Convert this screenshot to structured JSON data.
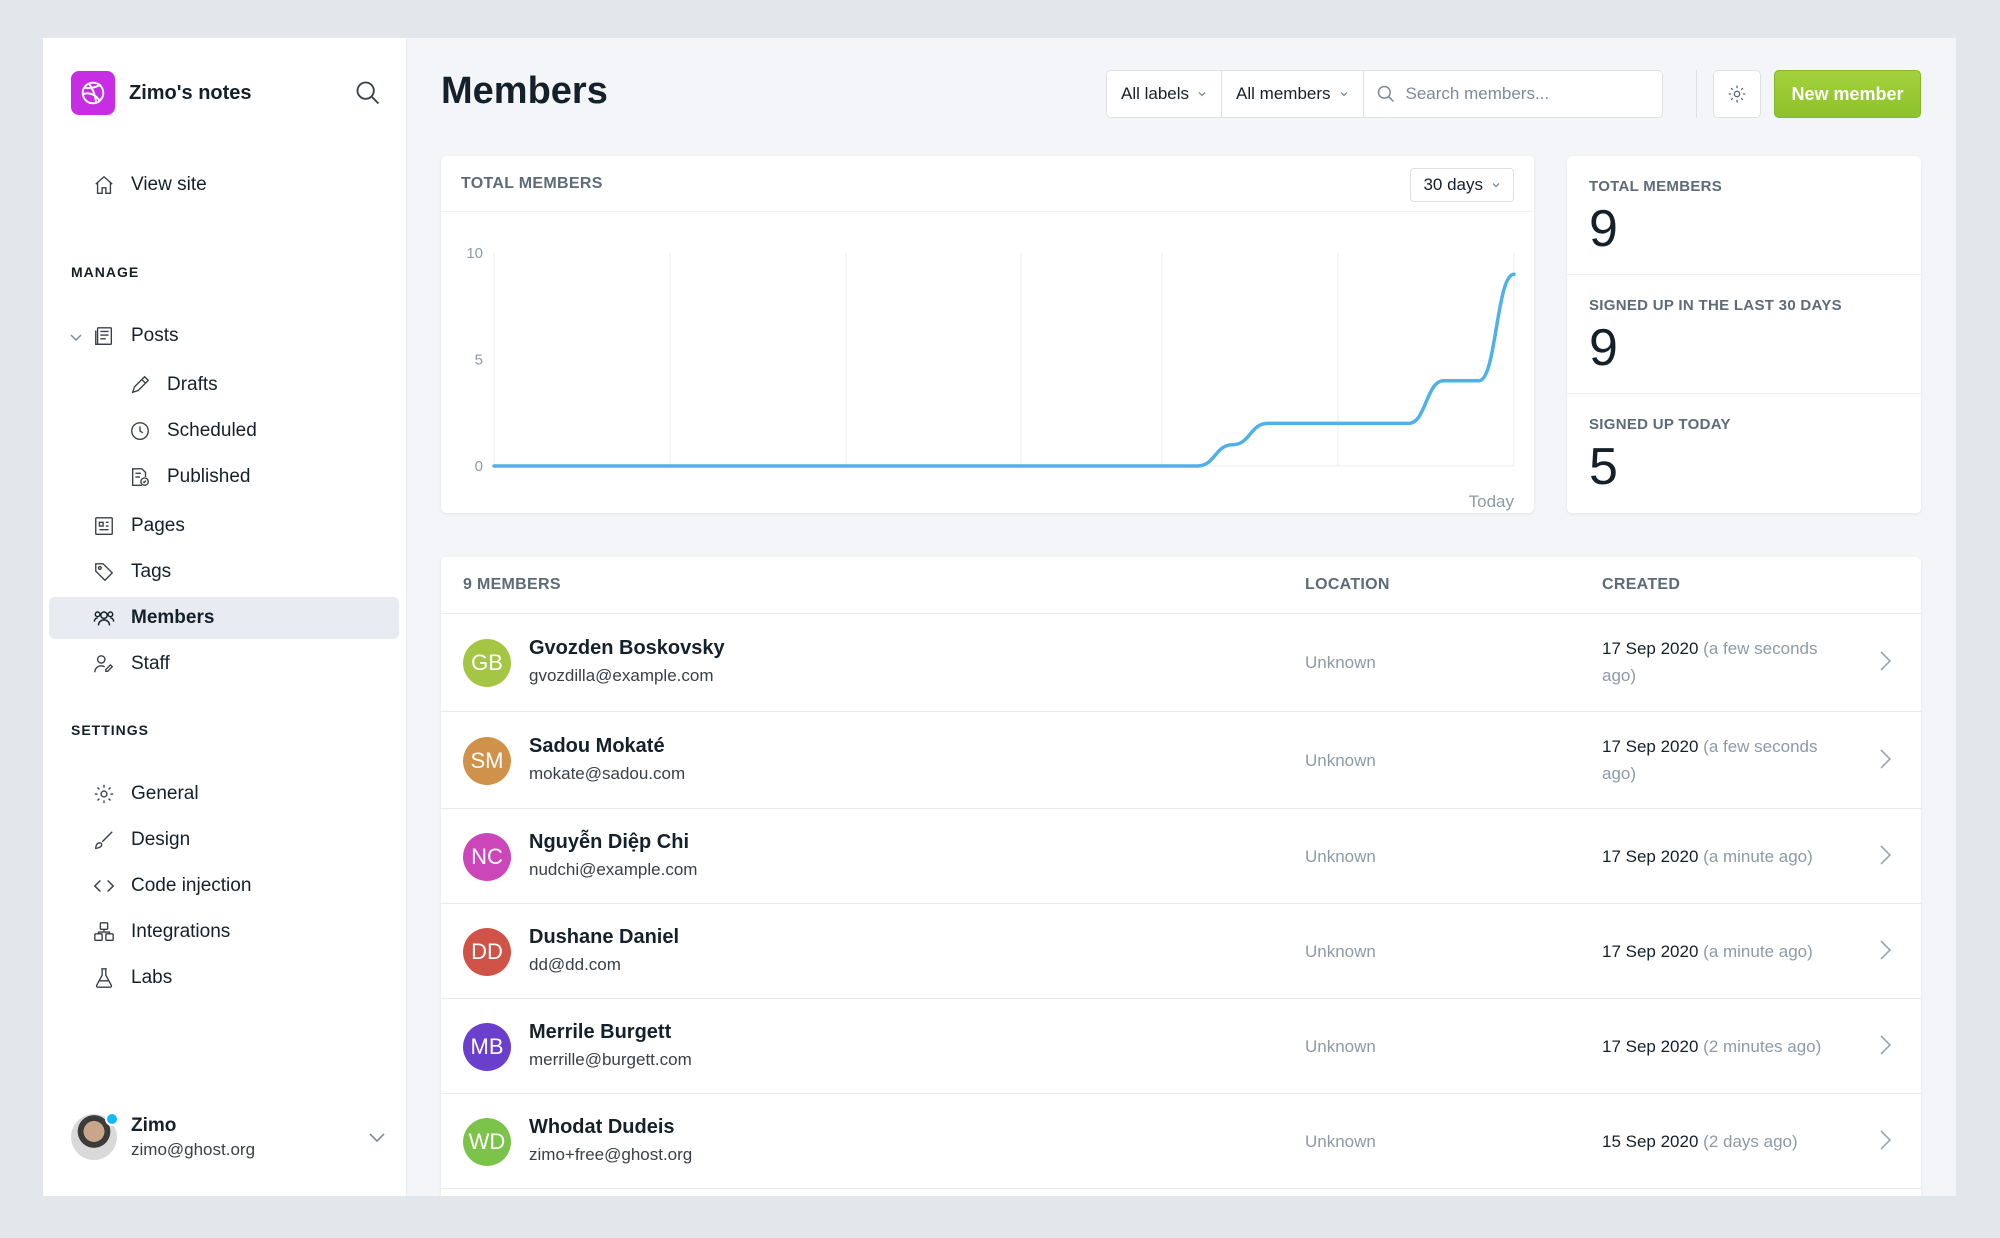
{
  "sidebar": {
    "brand": "Zimo's notes",
    "view_site": "View site",
    "manage_title": "MANAGE",
    "posts": "Posts",
    "drafts": "Drafts",
    "scheduled": "Scheduled",
    "published": "Published",
    "pages": "Pages",
    "tags": "Tags",
    "members": "Members",
    "staff": "Staff",
    "settings_title": "SETTINGS",
    "general": "General",
    "design": "Design",
    "code_injection": "Code injection",
    "integrations": "Integrations",
    "labs": "Labs",
    "user": {
      "name": "Zimo",
      "email": "zimo@ghost.org"
    }
  },
  "header": {
    "title": "Members",
    "labels_filter": "All labels",
    "members_filter": "All members",
    "search_placeholder": "Search members...",
    "new_member": "New member"
  },
  "chart": {
    "title": "TOTAL MEMBERS",
    "range": "30 days",
    "x_end_label": "Today"
  },
  "chart_data": {
    "type": "line",
    "title": "TOTAL MEMBERS",
    "xlabel": "",
    "ylabel": "",
    "x_tick_labels": [
      "Today"
    ],
    "y_ticks": [
      0,
      5,
      10
    ],
    "ylim": [
      0,
      10
    ],
    "x": [
      0,
      20,
      21,
      22,
      23,
      24,
      25,
      26,
      27,
      28,
      29
    ],
    "values": [
      0,
      0,
      1,
      2,
      2,
      2,
      2,
      2,
      4,
      4,
      9
    ],
    "grid": true,
    "color": "#4fb1e8"
  },
  "stats": [
    {
      "label": "TOTAL MEMBERS",
      "value": "9"
    },
    {
      "label": "SIGNED UP IN THE LAST 30 DAYS",
      "value": "9"
    },
    {
      "label": "SIGNED UP TODAY",
      "value": "5"
    }
  ],
  "table": {
    "count_header": "9 MEMBERS",
    "location_header": "LOCATION",
    "created_header": "CREATED",
    "rows": [
      {
        "initials": "GB",
        "color": "#a5c545",
        "name": "Gvozden Boskovsky",
        "email": "gvozdilla@example.com",
        "location": "Unknown",
        "date": "17 Sep 2020",
        "ago": "(a few seconds ago)"
      },
      {
        "initials": "SM",
        "color": "#d0924b",
        "name": "Sadou Mokaté",
        "email": "mokate@sadou.com",
        "location": "Unknown",
        "date": "17 Sep 2020",
        "ago": "(a few seconds ago)"
      },
      {
        "initials": "NC",
        "color": "#cb46b8",
        "name": "Nguyễn Diệp Chi",
        "email": "nudchi@example.com",
        "location": "Unknown",
        "date": "17 Sep 2020",
        "ago": "(a minute ago)"
      },
      {
        "initials": "DD",
        "color": "#cf5346",
        "name": "Dushane Daniel",
        "email": "dd@dd.com",
        "location": "Unknown",
        "date": "17 Sep 2020",
        "ago": "(a minute ago)"
      },
      {
        "initials": "MB",
        "color": "#6a3fcb",
        "name": "Merrile Burgett",
        "email": "merrille@burgett.com",
        "location": "Unknown",
        "date": "17 Sep 2020",
        "ago": "(2 minutes ago)"
      },
      {
        "initials": "WD",
        "color": "#7cc34b",
        "name": "Whodat Dudeis",
        "email": "zimo+free@ghost.org",
        "location": "Unknown",
        "date": "15 Sep 2020",
        "ago": "(2 days ago)"
      }
    ]
  }
}
